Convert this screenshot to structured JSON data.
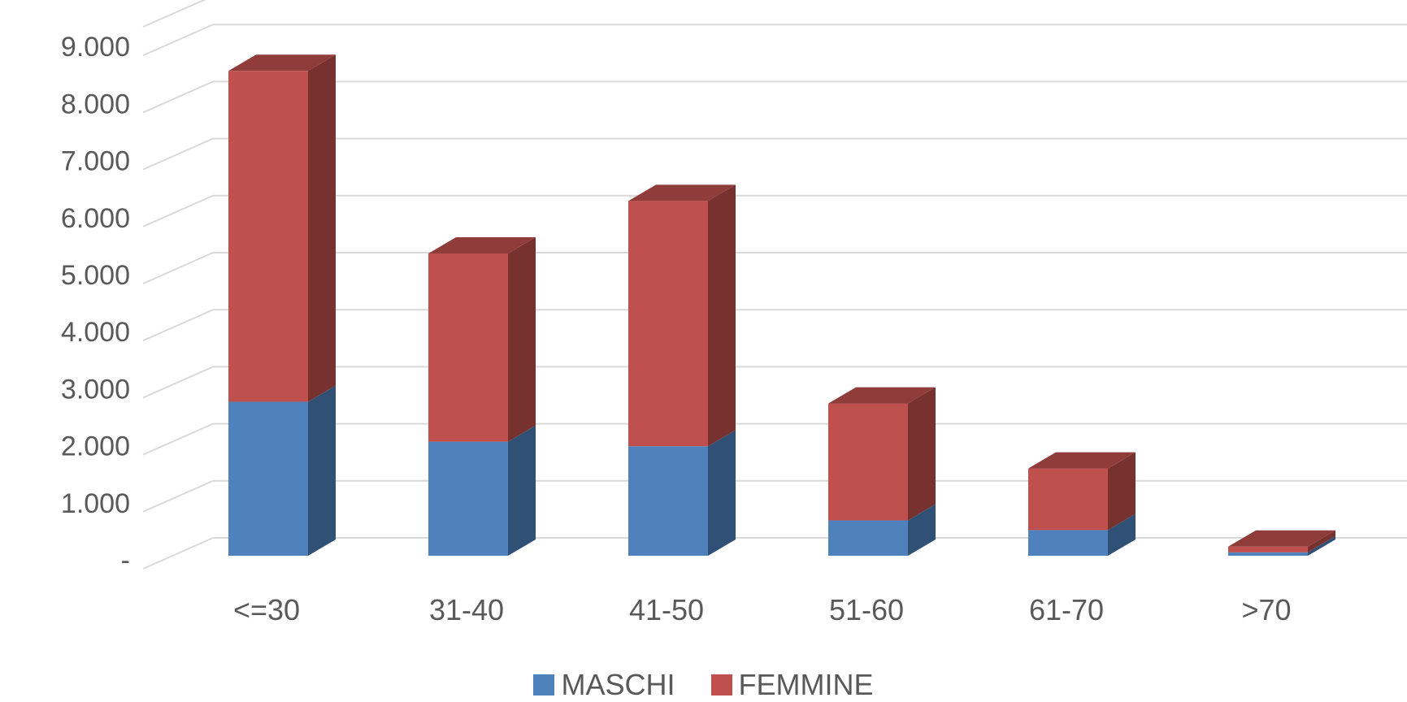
{
  "chart_data": {
    "type": "bar",
    "stacked": true,
    "three_d": true,
    "categories": [
      "<=30",
      "31-40",
      "41-50",
      "51-60",
      "61-70",
      ">70"
    ],
    "series": [
      {
        "name": "MASCHI",
        "color": "#4F81BD",
        "values": [
          2700,
          2000,
          1920,
          620,
          450,
          60
        ]
      },
      {
        "name": "FEMMINE",
        "color": "#C0504D",
        "values": [
          5800,
          3300,
          4300,
          2050,
          1080,
          100
        ]
      }
    ],
    "yticks": [
      {
        "value": 0,
        "label": "-"
      },
      {
        "value": 1000,
        "label": "1.000"
      },
      {
        "value": 2000,
        "label": "2.000"
      },
      {
        "value": 3000,
        "label": "3.000"
      },
      {
        "value": 4000,
        "label": "4.000"
      },
      {
        "value": 5000,
        "label": "5.000"
      },
      {
        "value": 6000,
        "label": "6.000"
      },
      {
        "value": 7000,
        "label": "7.000"
      },
      {
        "value": 8000,
        "label": "8.000"
      },
      {
        "value": 9000,
        "label": "9.000"
      }
    ],
    "ylim": [
      0,
      9500
    ],
    "grid": true,
    "legend_position": "bottom"
  }
}
